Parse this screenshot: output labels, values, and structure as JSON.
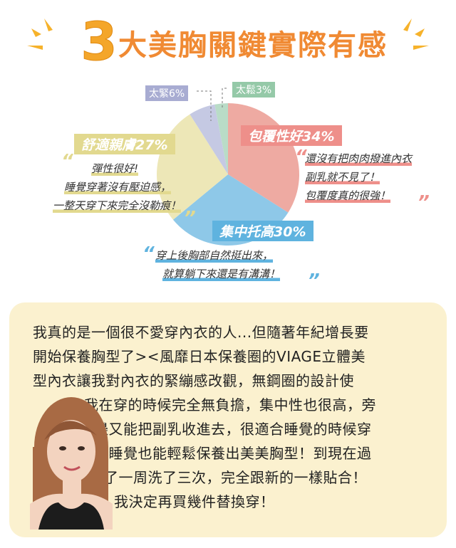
{
  "header": {
    "number": "3",
    "title": "大美胸關鍵實際有感",
    "accent_color": "#f08a33"
  },
  "chart_data": {
    "type": "pie",
    "slices": [
      {
        "label": "包覆性好",
        "pct_text": "34%",
        "value": 34,
        "color": "#eeaaa2",
        "tag_color": "#ee8f8a"
      },
      {
        "label": "集中托高",
        "pct_text": "30%",
        "value": 30,
        "color": "#8ec8e8",
        "tag_color": "#5fb3df"
      },
      {
        "label": "舒適親膚",
        "pct_text": "27%",
        "value": 27,
        "color": "#ede7b7",
        "tag_color": "#e2d98f"
      },
      {
        "label": "太緊",
        "pct_text": "6%",
        "value": 6,
        "color": "#c5c9e3",
        "tag_color": "#a8acd2"
      },
      {
        "label": "太鬆",
        "pct_text": "3%",
        "value": 3,
        "color": "#b9dcc7",
        "tag_color": "#95c9a8"
      }
    ],
    "quotes": [
      {
        "slice": "包覆性好",
        "lines": [
          "還沒有把肉肉撥進內衣",
          "副乳就不見了！",
          "包覆度真的很強！"
        ],
        "color": "#ee8f8a"
      },
      {
        "slice": "舒適親膚",
        "lines": [
          "彈性很好!",
          "睡覺穿著沒有壓迫感，",
          "一整天穿下來完全沒勒痕！"
        ],
        "color": "#e2d98f"
      },
      {
        "slice": "集中托高",
        "lines": [
          "穿上後胸部自然挺出來，",
          "就算躺下來還是有溝溝！"
        ],
        "color": "#5fb3df"
      }
    ]
  },
  "testimonial": {
    "lines": [
      "我真的是一個很不愛穿內衣的人...但隨著年紀增長要",
      "開始保養胸型了><風靡日本保養圈的VIAGE立體美",
      "型內衣讓我對內衣的緊繃感改觀，無鋼圈的設計使",
      "我在穿的時候完全無負擔，集中性也很高，旁",
      "邊又能把副乳收進去，很適合睡覺的時候穿",
      "～睡覺也能輕鬆保養出美美胸型！到現在過",
      "了一周洗了三次，完全跟新的一樣貼合！",
      "我決定再買幾件替換穿！"
    ],
    "panel_color": "#fbf1cf"
  }
}
